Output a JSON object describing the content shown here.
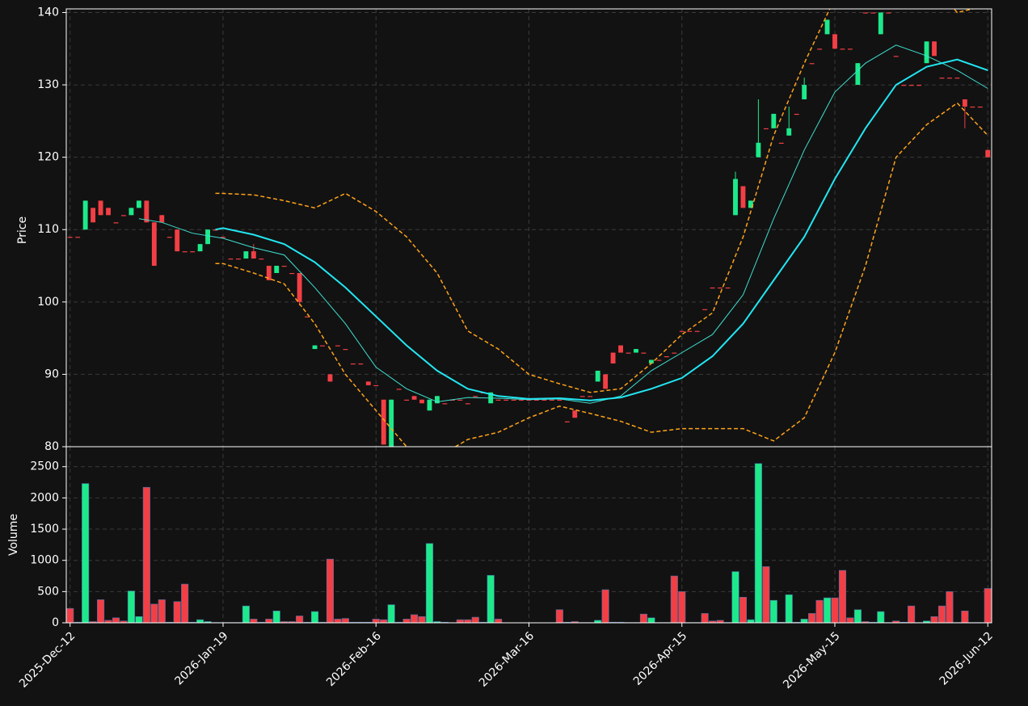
{
  "chart_data": {
    "type": "candlestick",
    "ylabel": "Price",
    "volume_ylabel": "Volume",
    "up_color": "#1de98b",
    "down_color": "#f23f45",
    "grid": true,
    "x": [
      0,
      1,
      2,
      3,
      4,
      5,
      6,
      7,
      8,
      9,
      10,
      11,
      12,
      13,
      14,
      15,
      16,
      17,
      18,
      19,
      20,
      21,
      22,
      23,
      24,
      25,
      26,
      27,
      28,
      29,
      30,
      31,
      32,
      33,
      34,
      35,
      36,
      37,
      38,
      39,
      40,
      41,
      42,
      43,
      44,
      45,
      46,
      47,
      48,
      49,
      50,
      51,
      52,
      53,
      54,
      55,
      56,
      57,
      58,
      59,
      60,
      61,
      62,
      63,
      64,
      65,
      66,
      67,
      68,
      69,
      70,
      71,
      72,
      73,
      74,
      75,
      76,
      77,
      78,
      79,
      80,
      81,
      82,
      83,
      84,
      85,
      86,
      87,
      88,
      89,
      90,
      91,
      92,
      93,
      94,
      95,
      96,
      97,
      98,
      99,
      100,
      101,
      102,
      103,
      104,
      105,
      106,
      107,
      108,
      109,
      110,
      111,
      112,
      113,
      114,
      115,
      116,
      117,
      118,
      119,
      120
    ],
    "xlim": [
      -0.5,
      120.5
    ],
    "xticks": [
      {
        "value": 0,
        "label": "2025-Dec-12"
      },
      {
        "value": 20,
        "label": "2026-Jan-19"
      },
      {
        "value": 40,
        "label": "2026-Feb-16"
      },
      {
        "value": 60,
        "label": "2026-Mar-16"
      },
      {
        "value": 80,
        "label": "2026-Apr-15"
      },
      {
        "value": 100,
        "label": "2026-May-15"
      },
      {
        "value": 120,
        "label": "2026-Jun-12"
      }
    ],
    "open": [
      109,
      109,
      110,
      113,
      114,
      113,
      111,
      112,
      112,
      113,
      114,
      111,
      112,
      109,
      110,
      107,
      107,
      107,
      108,
      110,
      109,
      106,
      106,
      106,
      107,
      106,
      105,
      104,
      105,
      104,
      104,
      98,
      93.5,
      94,
      90,
      94,
      93.5,
      91.5,
      91.5,
      89,
      88.5,
      86.5,
      80,
      88,
      86.5,
      87,
      86.5,
      85,
      86,
      86,
      86.5,
      86.5,
      86,
      87,
      87.5,
      86,
      86.5,
      86.5,
      86.5,
      86.5,
      86.5,
      86.5,
      86.5,
      86.5,
      86.5,
      83.5,
      85,
      87,
      87,
      89,
      90,
      93,
      94,
      93,
      93,
      93,
      91.5,
      92,
      92.5,
      93,
      96,
      96,
      96,
      99,
      102,
      102,
      102,
      112,
      116,
      113,
      120,
      124,
      124,
      122,
      123,
      126,
      128,
      133,
      135,
      137,
      137,
      135,
      135,
      130,
      140,
      140,
      137,
      140,
      134,
      130,
      130,
      130,
      133,
      136,
      131,
      131,
      131,
      128,
      127,
      127,
      121
    ],
    "high": [
      109,
      109,
      114,
      113,
      114,
      113,
      111,
      112,
      113,
      114,
      114,
      111,
      112,
      109,
      110,
      107,
      107,
      108,
      110,
      110,
      109,
      106,
      106,
      107,
      108,
      106,
      105,
      105,
      105,
      104,
      104,
      98,
      94,
      94,
      90,
      94,
      93.5,
      91.5,
      91.5,
      89,
      88.5,
      86.5,
      86.5,
      88,
      86.5,
      87,
      86.5,
      86.5,
      87,
      86,
      86.5,
      86.5,
      86,
      87,
      87.5,
      87.5,
      86.5,
      86.5,
      86.5,
      86.5,
      86.5,
      86.5,
      86.5,
      86.5,
      86.5,
      83.5,
      85,
      87,
      87,
      90.5,
      90,
      93,
      94,
      93,
      93.5,
      93,
      92,
      92,
      92.5,
      93,
      96,
      96,
      96,
      99,
      102,
      102,
      102,
      118,
      116,
      114,
      128,
      124,
      126,
      122,
      127,
      126,
      131,
      133,
      135,
      139,
      137,
      135,
      135,
      133,
      140,
      140,
      140,
      140,
      134,
      130,
      130,
      130,
      136,
      136,
      131,
      131,
      131,
      128,
      127,
      127,
      121
    ],
    "low": [
      109,
      109,
      110,
      111,
      112,
      112,
      111,
      112,
      112,
      113,
      111,
      105,
      111,
      109,
      107,
      107,
      107,
      107,
      108,
      110,
      109,
      106,
      106,
      106,
      106,
      106,
      103,
      104,
      105,
      104,
      99.5,
      98,
      93.5,
      94,
      89,
      94,
      93.5,
      91.5,
      91.5,
      88.5,
      88.5,
      80.3,
      80,
      88,
      86.5,
      86.5,
      86,
      85,
      86,
      86,
      86.5,
      86.5,
      86,
      87,
      87.5,
      86,
      86.5,
      86.5,
      86.5,
      86.5,
      86.5,
      86.5,
      86.5,
      86.5,
      86.5,
      83.5,
      84,
      87,
      87,
      89,
      88,
      91.5,
      93,
      93,
      93,
      93,
      91.5,
      92,
      92.5,
      93,
      96,
      96,
      96,
      99,
      102,
      102,
      102,
      112,
      113,
      113,
      120,
      124,
      124,
      122,
      123,
      126,
      128,
      133,
      135,
      137,
      135,
      135,
      135,
      130,
      140,
      140,
      137,
      140,
      134,
      130,
      130,
      130,
      133,
      134,
      131,
      131,
      131,
      124,
      127,
      127,
      120
    ],
    "close": [
      109,
      109,
      114,
      111,
      112,
      112,
      111,
      112,
      113,
      114,
      111,
      105,
      111,
      109,
      107,
      107,
      107,
      108,
      110,
      110,
      109,
      106,
      106,
      107,
      106,
      106,
      103,
      105,
      105,
      104,
      100,
      98,
      94,
      94,
      89,
      94,
      93.5,
      91.5,
      91.5,
      88.5,
      88.5,
      80.3,
      86.5,
      88,
      86.5,
      86.5,
      86,
      86.5,
      87,
      86,
      86.5,
      86.5,
      86,
      87,
      87.5,
      87.5,
      86.5,
      86.5,
      86.5,
      86.5,
      86.5,
      86.5,
      86.5,
      86.5,
      86.5,
      83.5,
      84,
      87,
      87,
      90.5,
      88,
      91.5,
      93,
      93,
      93.5,
      93,
      92,
      92,
      92.5,
      93,
      96,
      96,
      96,
      99,
      102,
      102,
      102,
      117,
      113,
      114,
      122,
      124,
      126,
      122,
      124,
      126,
      130,
      133,
      135,
      139,
      135,
      135,
      135,
      133,
      140,
      140,
      140,
      140,
      134,
      130,
      130,
      130,
      136,
      134,
      131,
      131,
      131,
      127,
      127,
      127,
      120
    ],
    "volume": [
      230,
      10,
      2230,
      20,
      370,
      40,
      80,
      30,
      510,
      100,
      2170,
      300,
      370,
      10,
      340,
      620,
      10,
      50,
      20,
      5,
      5,
      5,
      5,
      270,
      60,
      10,
      60,
      190,
      20,
      20,
      110,
      10,
      180,
      10,
      1020,
      60,
      70,
      10,
      10,
      10,
      60,
      50,
      290,
      10,
      60,
      130,
      100,
      1270,
      20,
      10,
      0,
      50,
      50,
      90,
      10,
      760,
      60,
      0,
      0,
      0,
      0,
      0,
      0,
      0,
      210,
      10,
      20,
      5,
      5,
      40,
      530,
      10,
      10,
      5,
      5,
      140,
      80,
      5,
      5,
      750,
      500,
      5,
      5,
      150,
      30,
      40,
      5,
      820,
      410,
      50,
      2550,
      900,
      360,
      10,
      450,
      10,
      60,
      150,
      360,
      400,
      400,
      840,
      80,
      210,
      20,
      10,
      180,
      5,
      30,
      10,
      270,
      5,
      30,
      100,
      270,
      500,
      5,
      190,
      5,
      5,
      550
    ],
    "ylim": [
      80,
      140.5
    ],
    "yticks": [
      80,
      90,
      100,
      110,
      120,
      130,
      140
    ],
    "volume_ylim": [
      0,
      2820
    ],
    "volume_yticks": [
      0,
      500,
      1000,
      1500,
      2000,
      2500
    ],
    "overlays": [
      {
        "color": "#3ee0d0",
        "width": 1,
        "dashed": false,
        "x": [
          9,
          12,
          16,
          20,
          24,
          28,
          32,
          36,
          40,
          44,
          48,
          52,
          56,
          60,
          64,
          68,
          72,
          76,
          80,
          84,
          88,
          92,
          96,
          100,
          104,
          108,
          112,
          116,
          120
        ],
        "values": [
          111.5,
          111,
          109.5,
          108.8,
          107.5,
          106.5,
          102,
          97,
          91,
          88,
          86.2,
          86.8,
          86.7,
          86.5,
          86.6,
          86,
          87,
          90.5,
          93,
          95.5,
          101,
          111.5,
          121,
          129,
          133,
          135.5,
          134,
          132,
          129.5
        ]
      },
      {
        "color": "#22e6f2",
        "width": 2,
        "dashed": false,
        "x": [
          19,
          20,
          24,
          28,
          32,
          36,
          40,
          44,
          48,
          52,
          56,
          60,
          64,
          68,
          72,
          76,
          80,
          84,
          88,
          92,
          96,
          100,
          104,
          108,
          112,
          116,
          120
        ],
        "values": [
          110,
          110.2,
          109.3,
          108,
          105.5,
          102,
          98,
          94,
          90.5,
          88,
          87,
          86.6,
          86.7,
          86.4,
          86.8,
          88,
          89.5,
          92.5,
          97,
          103,
          109,
          117,
          124,
          130,
          132.5,
          133.5,
          132
        ]
      },
      {
        "color": "#ffa31a",
        "width": 1.5,
        "dashed": true,
        "x": [
          19,
          20,
          24,
          28,
          32,
          36,
          40,
          44,
          48,
          52,
          56,
          60,
          64,
          68,
          72,
          76,
          80,
          84,
          88,
          92,
          96,
          100,
          104,
          108,
          112,
          116,
          120
        ],
        "values": [
          115,
          115,
          114.8,
          114,
          113,
          115,
          112.5,
          109,
          104,
          96,
          93.5,
          90,
          88.7,
          87.5,
          88,
          91.5,
          95.5,
          98.5,
          109,
          123,
          133,
          142,
          145,
          147,
          145,
          140,
          141
        ]
      },
      {
        "color": "#ffa31a",
        "width": 1.5,
        "dashed": true,
        "x": [
          19,
          20,
          24,
          28,
          32,
          36,
          40,
          44,
          48,
          52,
          56,
          60,
          64,
          68,
          72,
          76,
          80,
          84,
          88,
          92,
          96,
          100,
          104,
          108,
          112,
          116,
          120
        ],
        "values": [
          105.3,
          105.3,
          104,
          102.5,
          97,
          90,
          85,
          80,
          78.5,
          81,
          82,
          84,
          85.6,
          84.6,
          83.5,
          82,
          82.5,
          82.5,
          82.5,
          80.8,
          84,
          93,
          105,
          120,
          124.5,
          127.5,
          123
        ]
      }
    ]
  }
}
